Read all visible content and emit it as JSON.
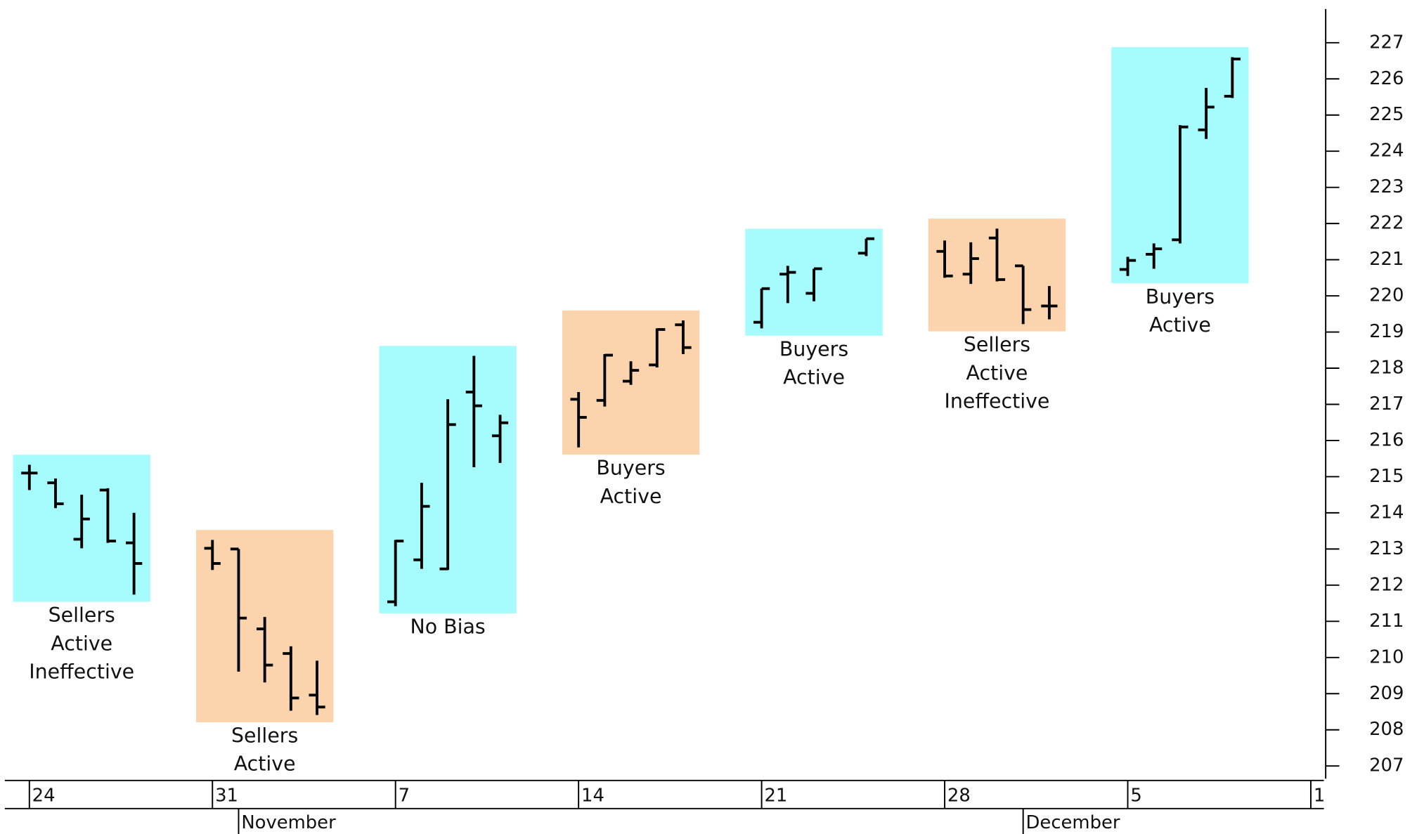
{
  "chart_data": {
    "type": "ohlc",
    "x": [
      0,
      1,
      2,
      3,
      4,
      7,
      8,
      9,
      10,
      11,
      14,
      15,
      16,
      17,
      18,
      21,
      22,
      23,
      24,
      25,
      28,
      29,
      30,
      32,
      35,
      36,
      37,
      38,
      39,
      42,
      43,
      44,
      45,
      46
    ],
    "open": [
      215.1,
      214.83,
      213.27,
      214.63,
      213.17,
      213.02,
      213.0,
      210.79,
      210.11,
      208.96,
      211.54,
      212.7,
      212.45,
      217.34,
      216.13,
      217.14,
      217.11,
      217.64,
      218.09,
      219.2,
      219.27,
      220.6,
      220.07,
      221.18,
      221.23,
      220.6,
      221.6,
      220.83,
      219.72,
      220.73,
      221.15,
      221.55,
      224.59,
      225.52
    ],
    "high": [
      215.33,
      214.95,
      214.5,
      214.68,
      214.0,
      213.25,
      213.0,
      211.12,
      210.31,
      209.91,
      213.25,
      214.83,
      217.14,
      218.34,
      216.71,
      217.34,
      218.39,
      218.19,
      219.1,
      219.32,
      220.2,
      220.83,
      220.75,
      221.58,
      221.53,
      221.48,
      221.86,
      220.83,
      220.27,
      221.08,
      221.45,
      224.72,
      225.75,
      226.6
    ],
    "low": [
      214.63,
      214.13,
      213.02,
      213.17,
      211.74,
      212.42,
      209.61,
      209.31,
      208.53,
      208.41,
      211.42,
      212.45,
      212.42,
      215.26,
      215.38,
      215.81,
      216.94,
      217.54,
      218.02,
      218.39,
      219.1,
      219.8,
      219.85,
      221.1,
      220.5,
      220.33,
      220.4,
      219.22,
      219.35,
      220.55,
      220.75,
      221.45,
      224.34,
      225.47
    ],
    "close": [
      215.1,
      214.25,
      213.83,
      213.22,
      212.6,
      212.6,
      211.09,
      209.79,
      208.88,
      208.63,
      213.22,
      214.18,
      216.44,
      216.96,
      216.49,
      216.64,
      218.36,
      217.94,
      219.07,
      218.57,
      220.2,
      220.65,
      220.75,
      221.58,
      220.55,
      221.03,
      220.45,
      219.62,
      219.72,
      220.98,
      221.3,
      224.67,
      225.22,
      226.55
    ],
    "color": "#000000",
    "regions": [
      {
        "from": 0,
        "to": 4,
        "color": "#a6fcfd",
        "label": [
          "Sellers",
          "Active",
          "Ineffective"
        ]
      },
      {
        "from": 7,
        "to": 11,
        "color": "#fbd3ac",
        "label": [
          "Sellers",
          "Active"
        ]
      },
      {
        "from": 14,
        "to": 18,
        "color": "#a6fcfd",
        "label": [
          "No Bias"
        ]
      },
      {
        "from": 21,
        "to": 25,
        "color": "#fbd3ac",
        "label": [
          "Buyers",
          "Active"
        ]
      },
      {
        "from": 28,
        "to": 32,
        "color": "#a6fcfd",
        "label": [
          "Buyers",
          "Active"
        ]
      },
      {
        "from": 35,
        "to": 39,
        "color": "#fbd3ac",
        "label": [
          "Sellers",
          "Active",
          "Ineffective"
        ]
      },
      {
        "from": 42,
        "to": 46,
        "color": "#a6fcfd",
        "label": [
          "Buyers",
          "Active"
        ]
      }
    ],
    "xlim": [
      -0.94,
      49.5
    ],
    "xticks": [
      {
        "value": 0,
        "label": "24"
      },
      {
        "value": 7,
        "label": "31"
      },
      {
        "value": 14,
        "label": "7"
      },
      {
        "value": 21,
        "label": "14"
      },
      {
        "value": 28,
        "label": "21"
      },
      {
        "value": 35,
        "label": "28"
      },
      {
        "value": 42,
        "label": "5"
      },
      {
        "value": 49,
        "label": "1"
      }
    ],
    "months": [
      {
        "value": 8,
        "label": "November"
      },
      {
        "value": 38,
        "label": "December"
      }
    ],
    "ylim": [
      206.65,
      227.93
    ],
    "yticks": [
      207,
      208,
      209,
      210,
      211,
      212,
      213,
      214,
      215,
      216,
      217,
      218,
      219,
      220,
      221,
      222,
      223,
      224,
      225,
      226,
      227
    ]
  }
}
